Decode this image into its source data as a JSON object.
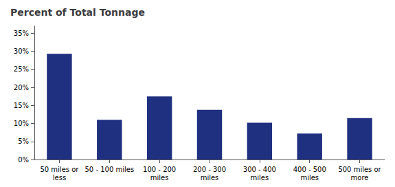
{
  "chart_data": {
    "type": "bar",
    "title": "Percent of Total Tonnage",
    "categories": [
      "50 miles or\nless",
      "50 - 100 miles",
      "100 - 200\nmiles",
      "200 - 300\nmiles",
      "300 - 400\nmiles",
      "400 - 500\nmiles",
      "500 miles or\nmore"
    ],
    "values": [
      29.3,
      11.0,
      17.5,
      13.8,
      10.2,
      7.2,
      11.5
    ],
    "color": "#1F3080",
    "ylim": [
      0,
      37
    ],
    "yticks": [
      {
        "value": 0,
        "label": "0%"
      },
      {
        "value": 5,
        "label": "5%"
      },
      {
        "value": 10,
        "label": "10%"
      },
      {
        "value": 15,
        "label": "15%"
      },
      {
        "value": 20,
        "label": "20%"
      },
      {
        "value": 25,
        "label": "25%"
      },
      {
        "value": 30,
        "label": "30%"
      },
      {
        "value": 35,
        "label": "35%"
      }
    ],
    "grid": false
  }
}
